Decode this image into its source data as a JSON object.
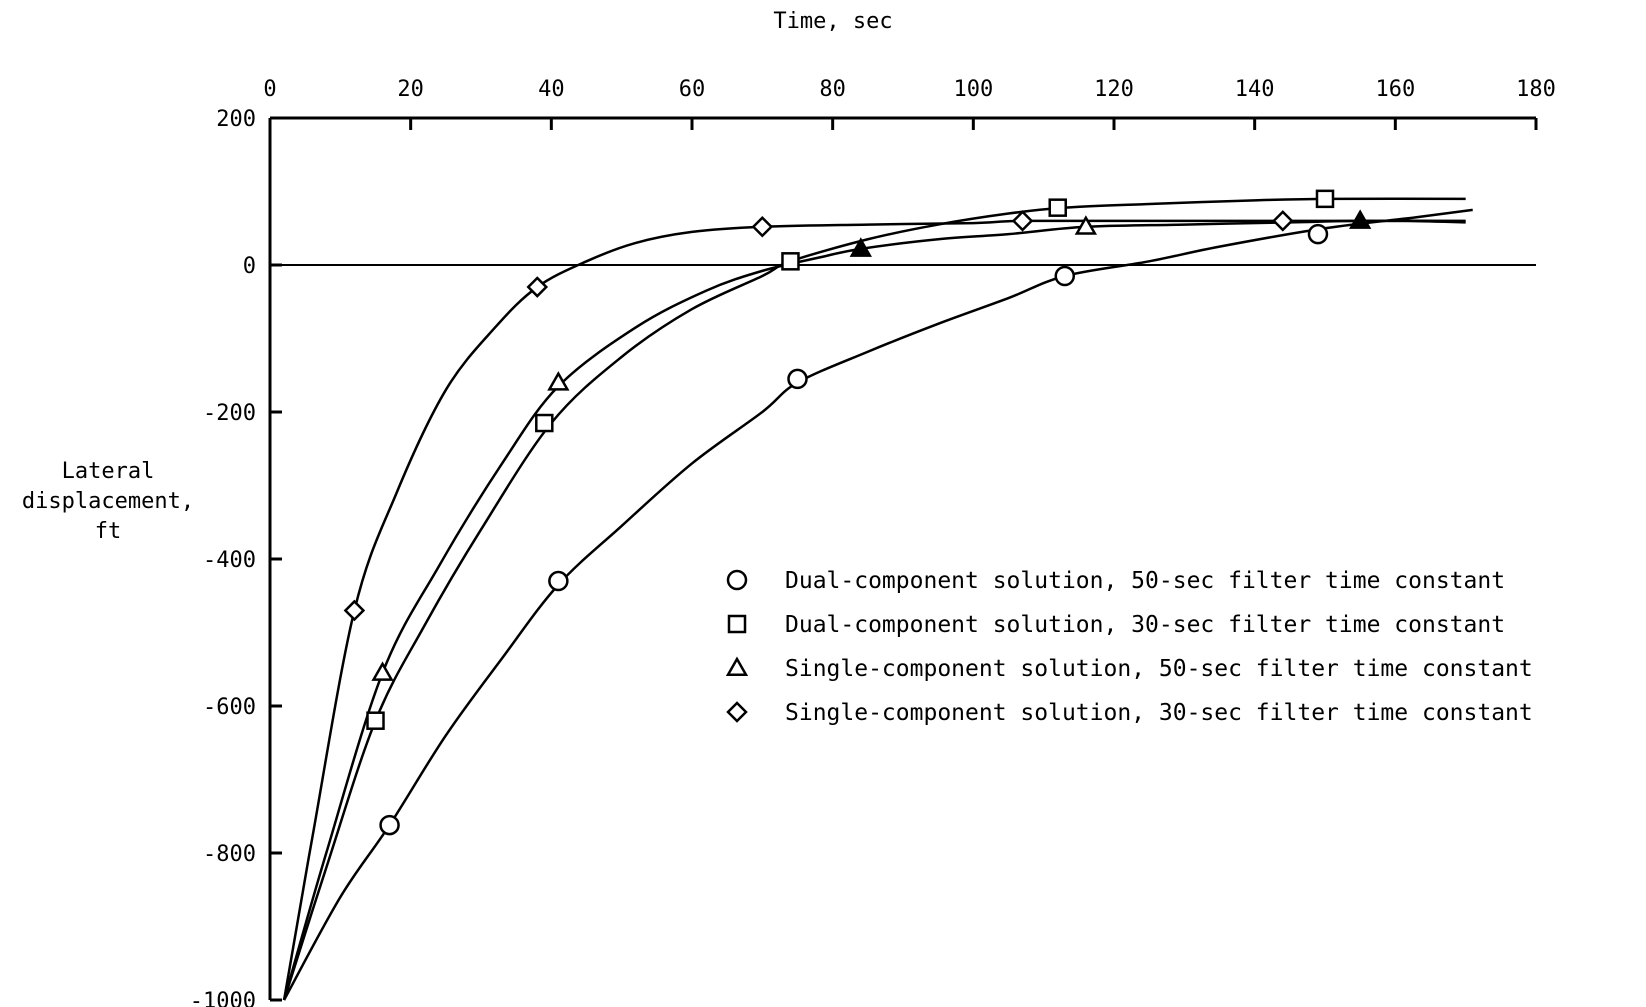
{
  "chart_data": {
    "type": "line",
    "xlabel": "Time, sec",
    "ylabel": "Lateral\ndisplacement,\nft",
    "xlim": [
      0,
      180
    ],
    "ylim": [
      -1000,
      200
    ],
    "x_ticks": [
      0,
      20,
      40,
      60,
      80,
      100,
      120,
      140,
      160,
      180
    ],
    "y_ticks": [
      200,
      0,
      -200,
      -400,
      -600,
      -800,
      -1000
    ],
    "x_axis_position": "top",
    "grid": false,
    "legend_position": "right-center",
    "series": [
      {
        "name": "Dual-component solution, 50-sec filter time constant",
        "marker": "circle",
        "curve": [
          [
            2,
            -1000
          ],
          [
            10,
            -860
          ],
          [
            17,
            -762
          ],
          [
            25,
            -640
          ],
          [
            33,
            -535
          ],
          [
            41,
            -435
          ],
          [
            50,
            -355
          ],
          [
            60,
            -270
          ],
          [
            70,
            -200
          ],
          [
            75,
            -160
          ],
          [
            85,
            -118
          ],
          [
            95,
            -80
          ],
          [
            105,
            -45
          ],
          [
            113,
            -15
          ],
          [
            125,
            5
          ],
          [
            135,
            25
          ],
          [
            150,
            50
          ],
          [
            163,
            65
          ],
          [
            171,
            75
          ]
        ],
        "markers": [
          [
            17,
            -762
          ],
          [
            41,
            -430
          ],
          [
            75,
            -155
          ],
          [
            113,
            -15
          ],
          [
            149,
            42
          ]
        ]
      },
      {
        "name": "Dual-component solution, 30-sec filter time constant",
        "marker": "square",
        "curve": [
          [
            2,
            -1000
          ],
          [
            8,
            -820
          ],
          [
            15,
            -620
          ],
          [
            22,
            -490
          ],
          [
            30,
            -360
          ],
          [
            40,
            -215
          ],
          [
            50,
            -125
          ],
          [
            60,
            -60
          ],
          [
            70,
            -15
          ],
          [
            74,
            5
          ],
          [
            85,
            35
          ],
          [
            95,
            55
          ],
          [
            105,
            70
          ],
          [
            113,
            78
          ],
          [
            125,
            83
          ],
          [
            140,
            88
          ],
          [
            151,
            90
          ],
          [
            170,
            90
          ]
        ],
        "markers": [
          [
            15,
            -620
          ],
          [
            39,
            -215
          ],
          [
            74,
            5
          ],
          [
            112,
            78
          ],
          [
            150,
            90
          ]
        ]
      },
      {
        "name": "Single-component solution, 50-sec filter time constant",
        "marker": "triangle",
        "curve": [
          [
            2,
            -1000
          ],
          [
            8,
            -800
          ],
          [
            16,
            -555
          ],
          [
            24,
            -410
          ],
          [
            33,
            -270
          ],
          [
            41,
            -165
          ],
          [
            52,
            -85
          ],
          [
            62,
            -35
          ],
          [
            70,
            -8
          ],
          [
            78,
            10
          ],
          [
            84,
            22
          ],
          [
            95,
            35
          ],
          [
            105,
            42
          ],
          [
            116,
            52
          ],
          [
            130,
            55
          ],
          [
            145,
            58
          ],
          [
            155,
            60
          ],
          [
            170,
            60
          ]
        ],
        "markers": [
          [
            16,
            -555
          ],
          [
            41,
            -160
          ],
          [
            84,
            22
          ],
          [
            116,
            52
          ],
          [
            155,
            60
          ]
        ],
        "filled_markers": [
          [
            84,
            22
          ],
          [
            155,
            60
          ]
        ]
      },
      {
        "name": "Single-component solution, 30-sec filter time constant",
        "marker": "diamond",
        "curve": [
          [
            2,
            -1000
          ],
          [
            6,
            -780
          ],
          [
            12,
            -470
          ],
          [
            18,
            -310
          ],
          [
            25,
            -170
          ],
          [
            32,
            -85
          ],
          [
            38,
            -30
          ],
          [
            45,
            5
          ],
          [
            52,
            30
          ],
          [
            60,
            45
          ],
          [
            70,
            52
          ],
          [
            85,
            55
          ],
          [
            100,
            57
          ],
          [
            107,
            60
          ],
          [
            125,
            60
          ],
          [
            144,
            60
          ],
          [
            160,
            60
          ],
          [
            170,
            58
          ]
        ],
        "markers": [
          [
            12,
            -470
          ],
          [
            38,
            -30
          ],
          [
            70,
            52
          ],
          [
            107,
            60
          ],
          [
            144,
            60
          ]
        ]
      }
    ],
    "legend": [
      {
        "symbol": "circle",
        "label": "Dual-component solution, 50-sec filter time constant"
      },
      {
        "symbol": "square",
        "label": "Dual-component solution, 30-sec filter time constant"
      },
      {
        "symbol": "triangle",
        "label": "Single-component solution, 50-sec filter time constant"
      },
      {
        "symbol": "diamond",
        "label": "Single-component solution, 30-sec filter time constant"
      }
    ],
    "baseline": {
      "y": 0,
      "x_extent": [
        0,
        180
      ]
    }
  }
}
